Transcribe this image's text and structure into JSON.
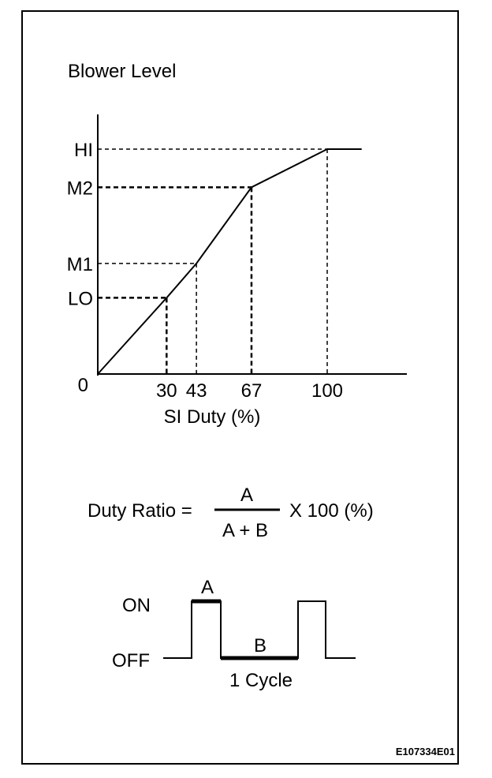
{
  "chart_data": {
    "type": "line",
    "title": "Blower Level",
    "xlabel": "SI Duty (%)",
    "origin_label": "0",
    "x_ticks": [
      "30",
      "43",
      "67",
      "100"
    ],
    "y_ticks": [
      "LO",
      "M1",
      "M2",
      "HI"
    ],
    "series": [
      {
        "x": [
          0,
          30,
          43,
          67,
          100,
          115
        ],
        "y": [
          0,
          1,
          1.45,
          2.45,
          2.95,
          2.95
        ]
      }
    ],
    "guides": [
      {
        "x": "30",
        "y": "LO"
      },
      {
        "x": "43",
        "y": "M1"
      },
      {
        "x": "67",
        "y": "M2"
      },
      {
        "x": "100",
        "y": "HI"
      }
    ]
  },
  "formula": {
    "left": "Duty Ratio =",
    "numerator": "A",
    "denominator": "A + B",
    "right": "X  100 (%)"
  },
  "waveform": {
    "on_label": "ON",
    "off_label": "OFF",
    "a_label": "A",
    "b_label": "B",
    "cycle_label": "1 Cycle"
  },
  "figure_code": "E107334E01"
}
